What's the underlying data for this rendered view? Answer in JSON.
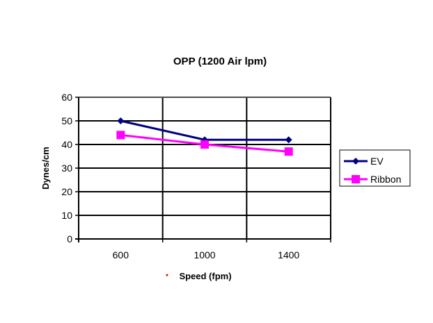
{
  "chart_data": {
    "type": "line",
    "title": "OPP (1200 Air lpm)",
    "xlabel": "Speed (fpm)",
    "ylabel": "Dynes/cm",
    "categories": [
      "600",
      "1000",
      "1400"
    ],
    "ylim": [
      0,
      60
    ],
    "yticks": [
      "0",
      "10",
      "20",
      "30",
      "40",
      "50",
      "60"
    ],
    "grid": true,
    "legend_position": "right",
    "series": [
      {
        "name": "EV",
        "values": [
          50,
          42,
          42
        ],
        "color": "#000080",
        "marker": "diamond"
      },
      {
        "name": "Ribbon",
        "values": [
          44,
          40,
          37
        ],
        "color": "#FF00FF",
        "marker": "square"
      }
    ]
  }
}
